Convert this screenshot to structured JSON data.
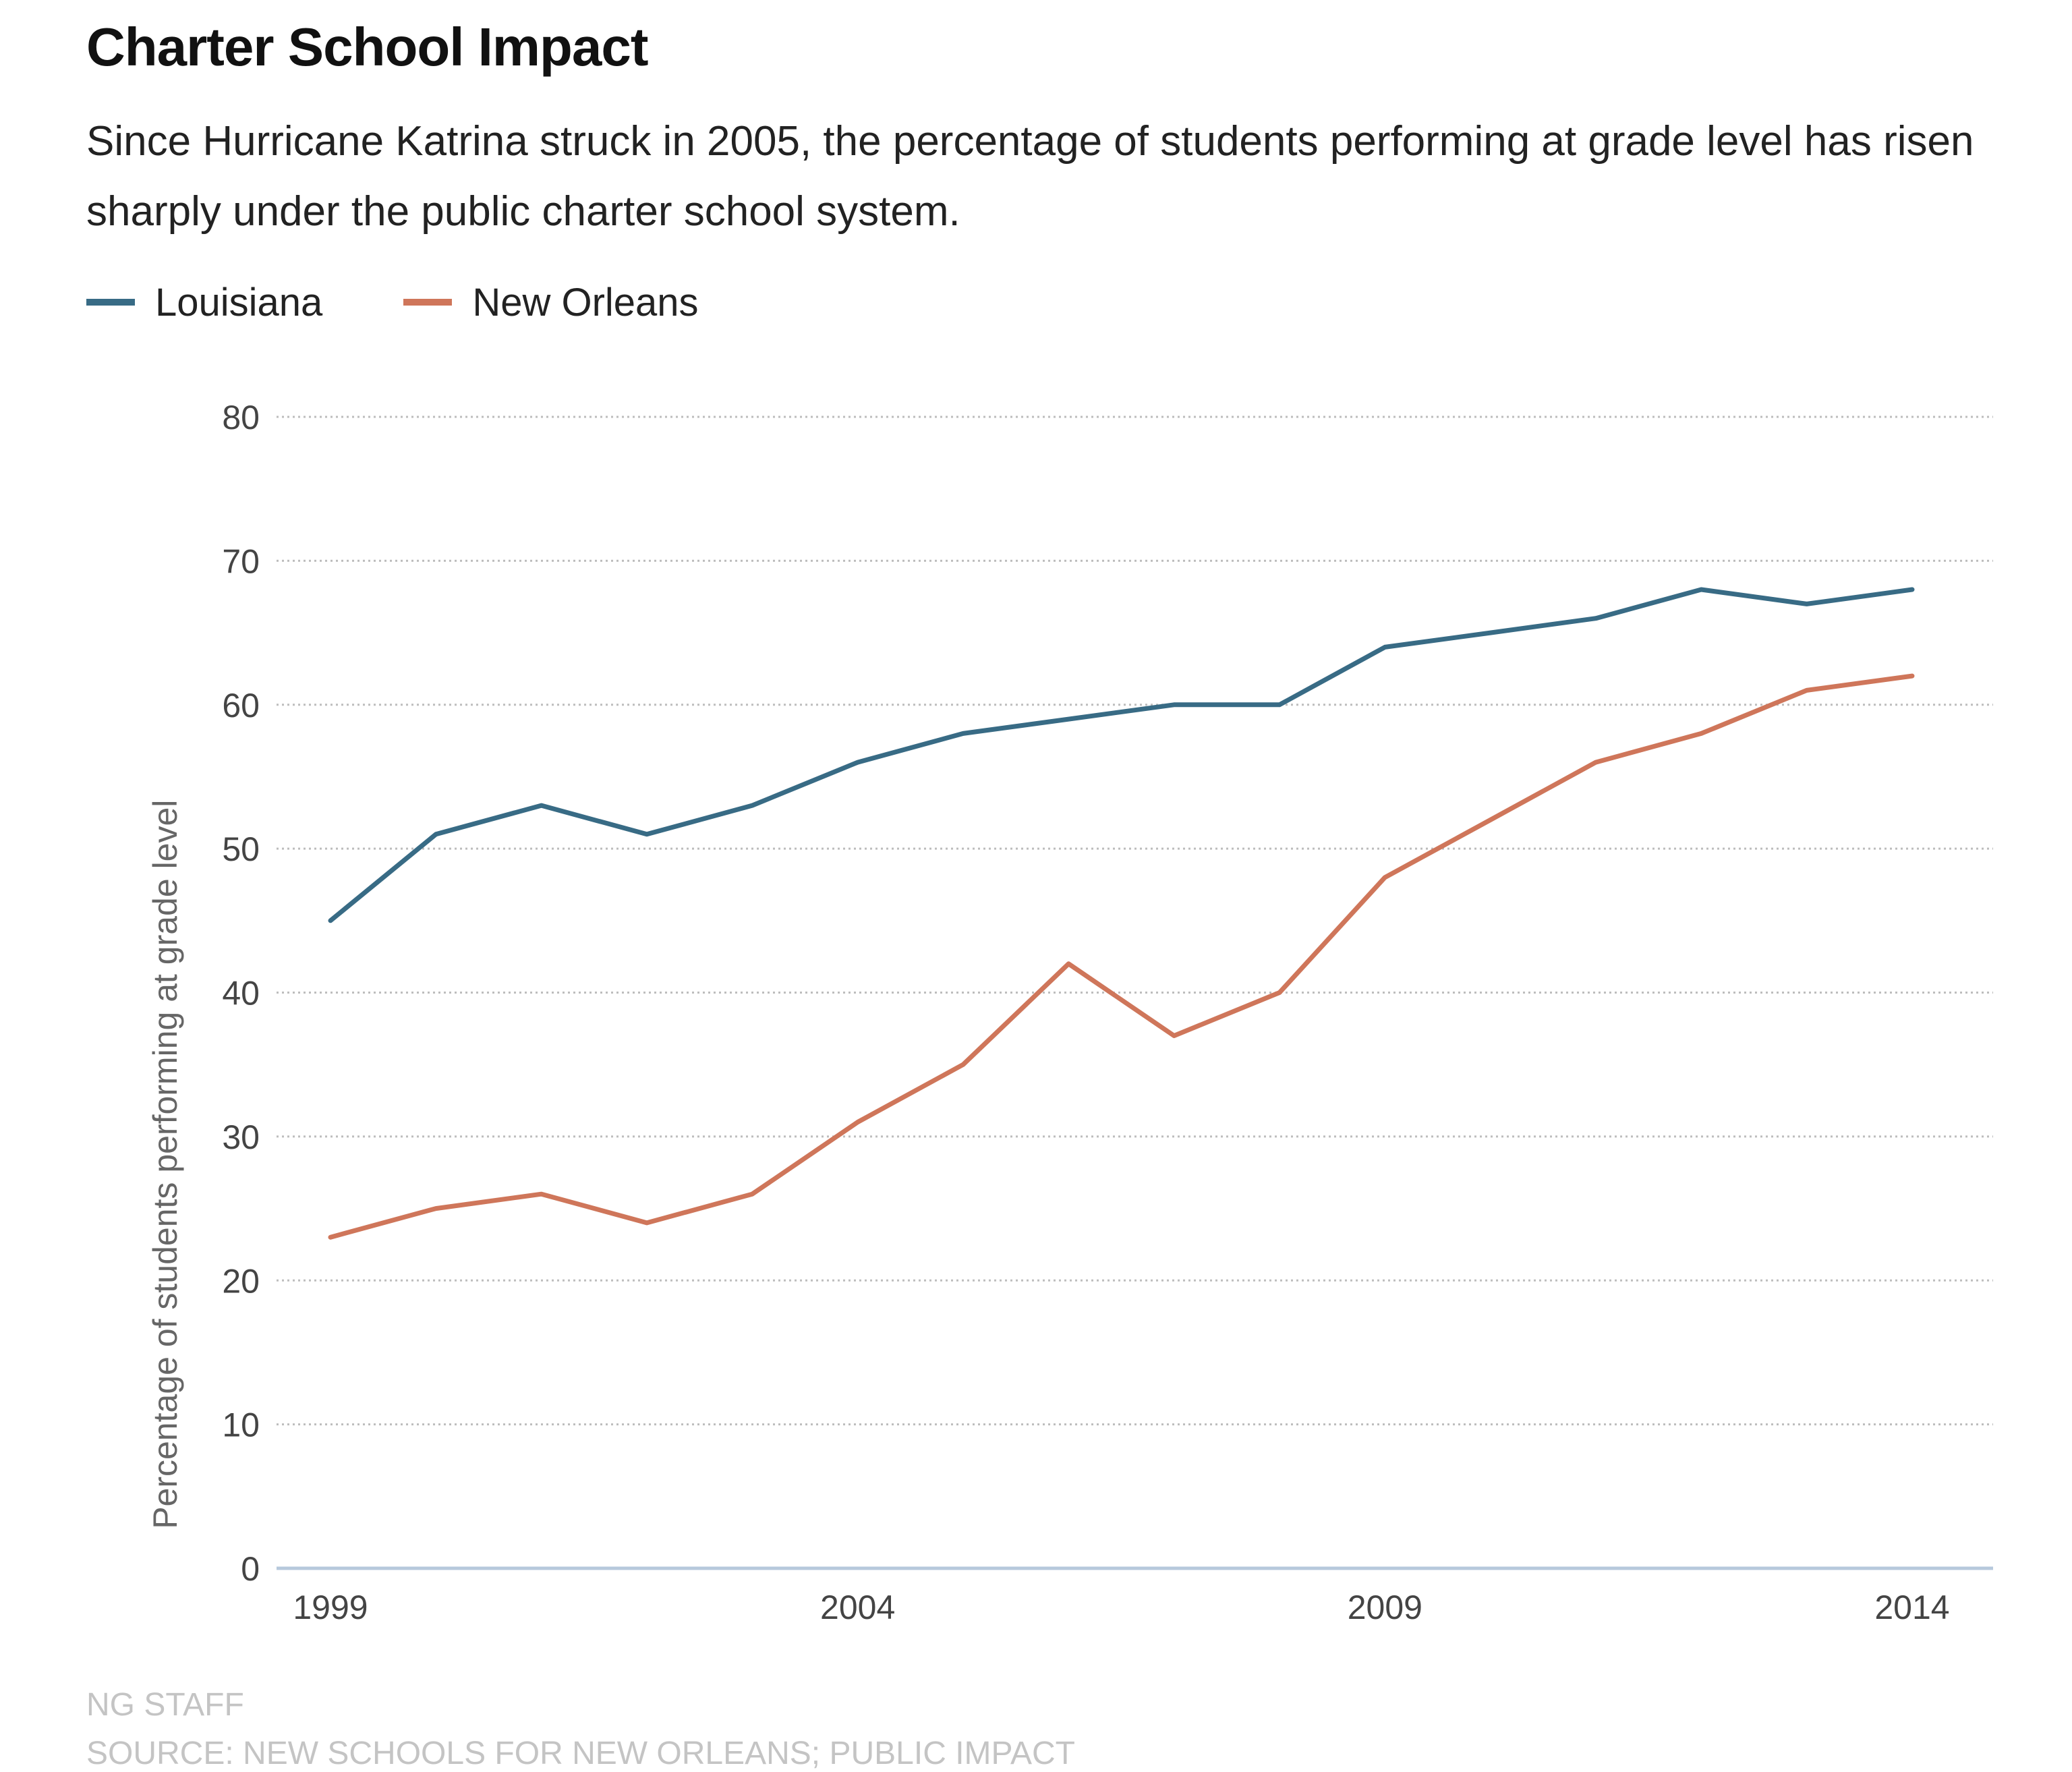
{
  "header": {
    "title": "Charter School Impact",
    "subtitle": "Since Hurricane Katrina struck in 2005, the percentage of students performing at grade level has risen sharply under the public charter school system."
  },
  "legend": {
    "items": [
      {
        "label": "Louisiana",
        "color": "#386b85"
      },
      {
        "label": "New Orleans",
        "color": "#cf765a"
      }
    ]
  },
  "chart_data": {
    "type": "line",
    "title": "Charter School Impact",
    "xlabel": "",
    "ylabel": "Percentage of students performing at grade level",
    "x": [
      1999,
      2000,
      2001,
      2002,
      2003,
      2004,
      2005,
      2006,
      2007,
      2008,
      2009,
      2010,
      2011,
      2012,
      2013,
      2014
    ],
    "xticks": [
      "1999",
      "2004",
      "2009",
      "2014"
    ],
    "yticks": [
      0,
      10,
      20,
      30,
      40,
      50,
      60,
      70,
      80
    ],
    "xlim": [
      1999,
      2014
    ],
    "ylim": [
      0,
      80
    ],
    "grid": true,
    "legend_position": "top-left",
    "series": [
      {
        "name": "Louisiana",
        "color": "#386b85",
        "values": [
          45,
          51,
          53,
          51,
          53,
          56,
          58,
          59,
          60,
          60,
          64,
          65,
          66,
          68,
          67,
          68
        ]
      },
      {
        "name": "New Orleans",
        "color": "#cf765a",
        "values": [
          23,
          25,
          26,
          24,
          26,
          31,
          35,
          42,
          37,
          40,
          48,
          52,
          56,
          58,
          61,
          62
        ]
      }
    ],
    "gridline_color": "#bdbdbd",
    "baseline_color": "#b7c9dc"
  },
  "footer": {
    "credit": "NG STAFF",
    "source": "SOURCE: NEW SCHOOLS FOR NEW ORLEANS; PUBLIC IMPACT"
  }
}
